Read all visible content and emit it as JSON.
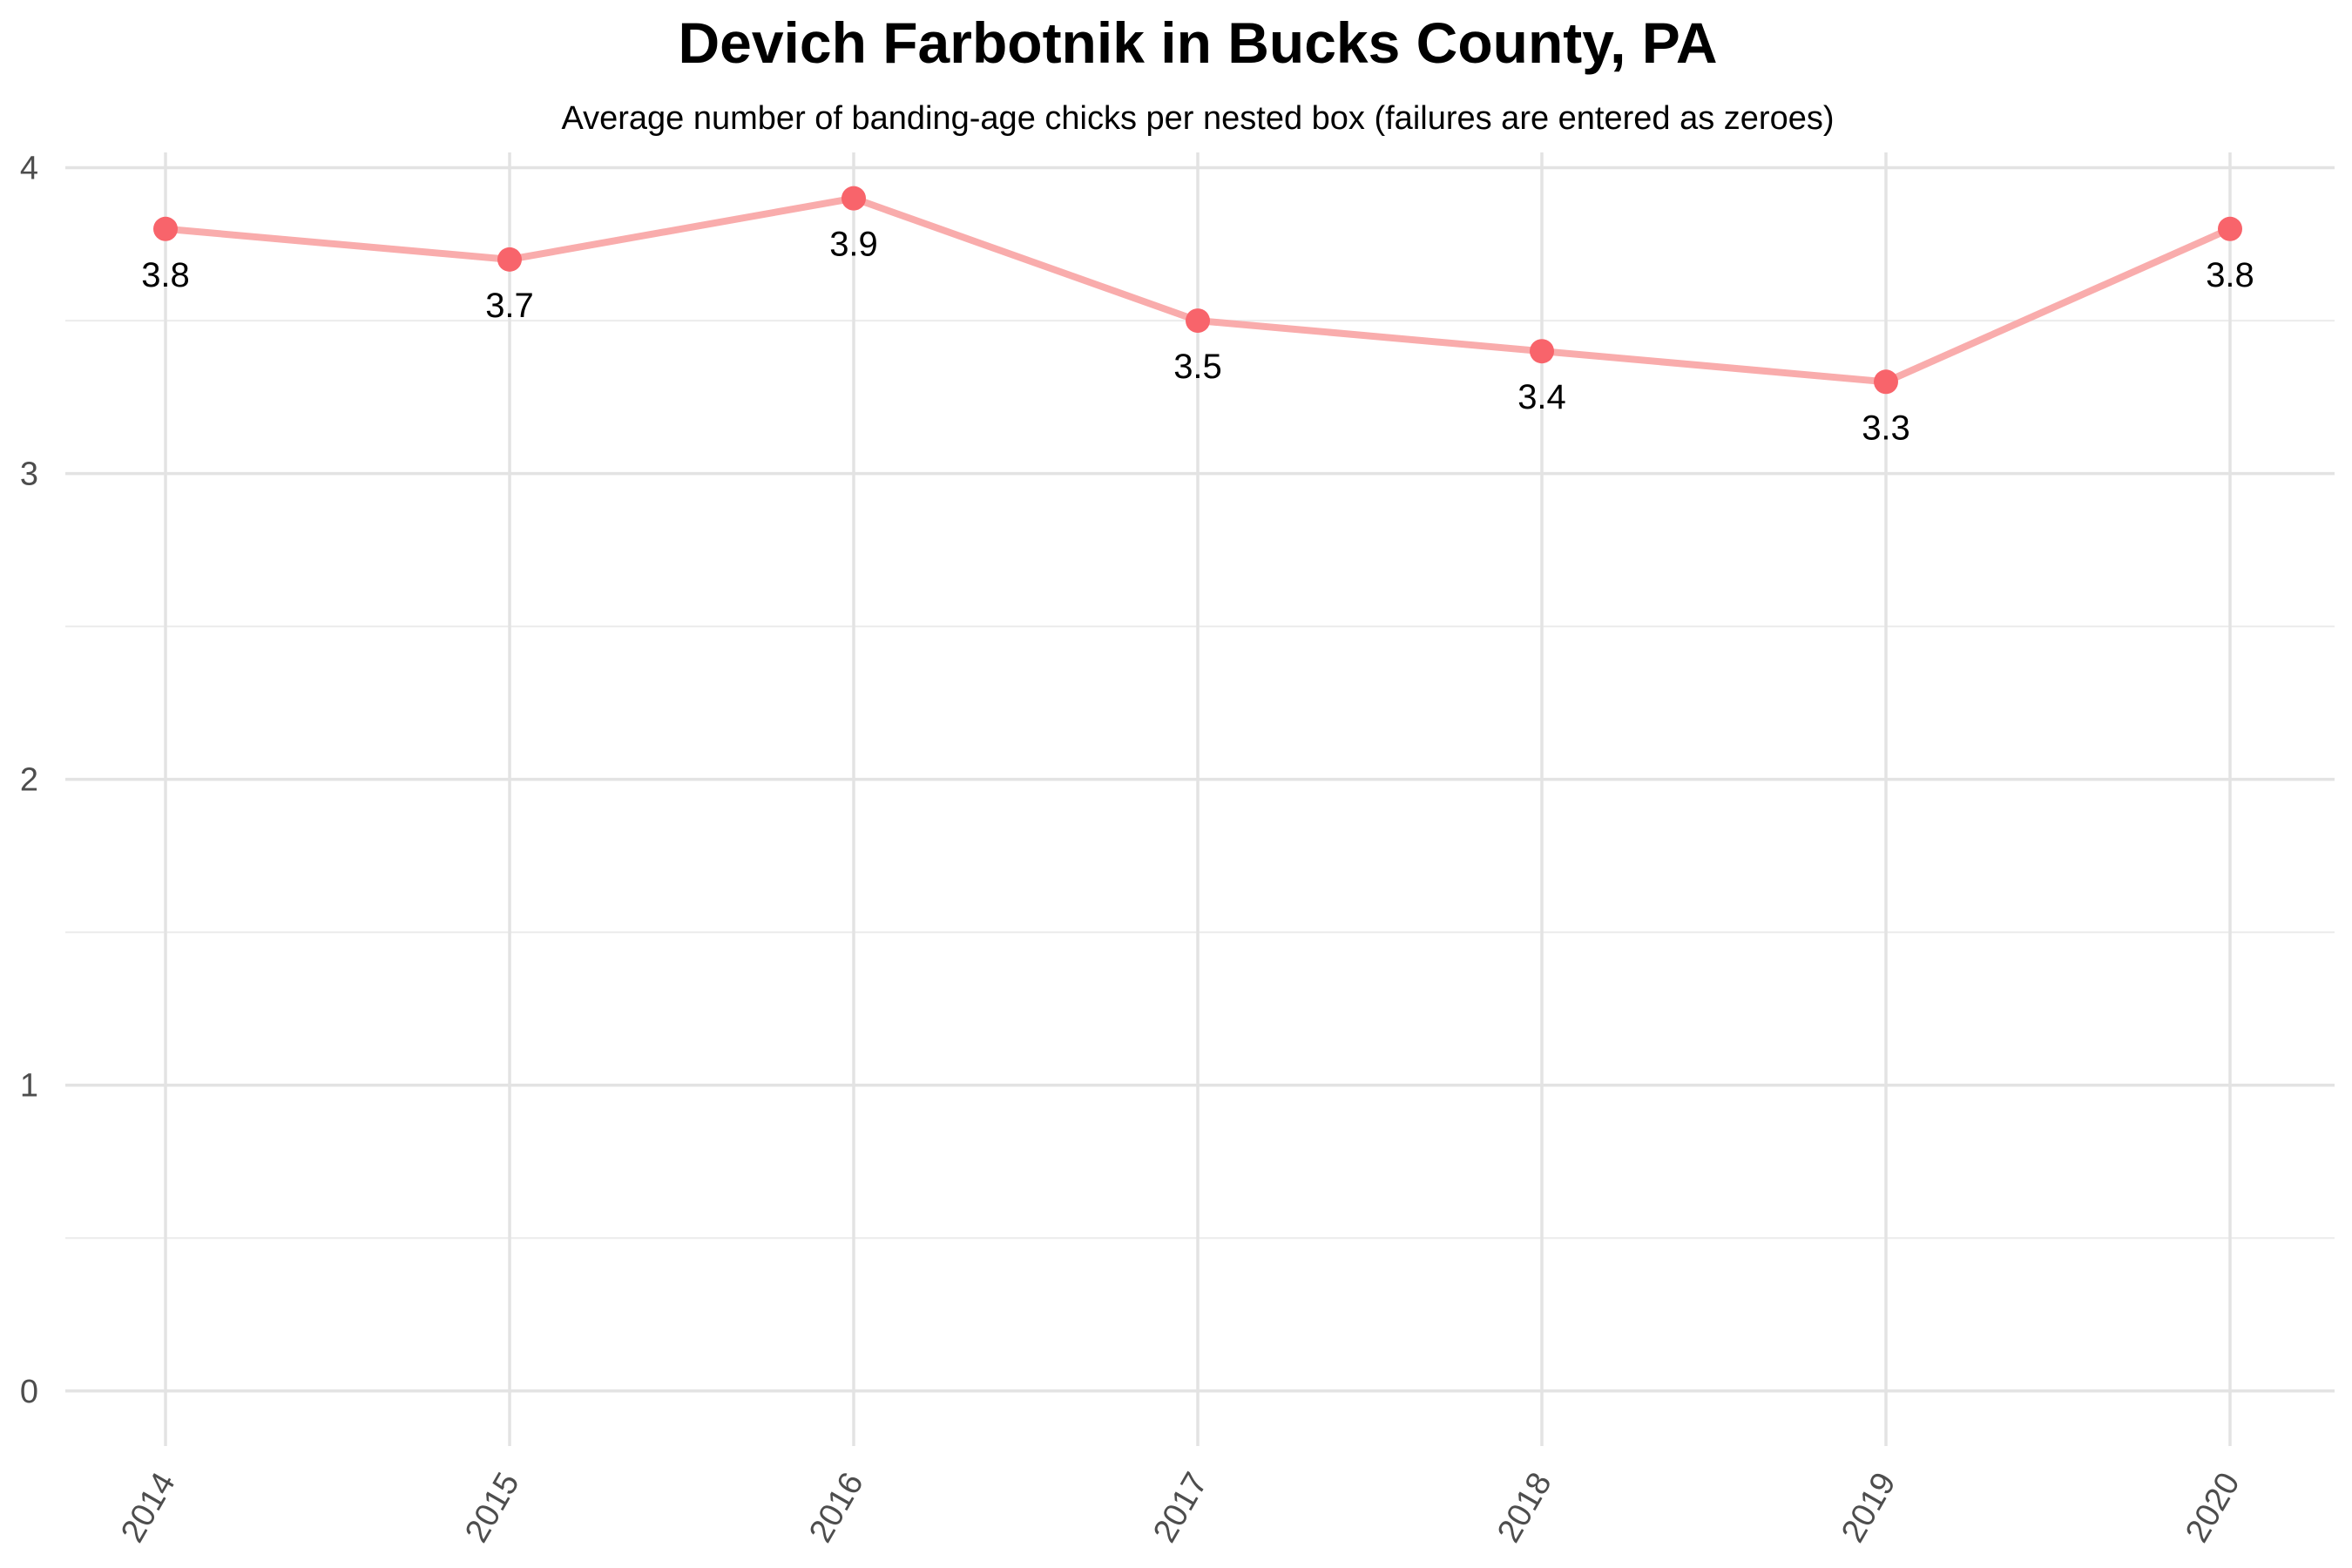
{
  "chart_data": {
    "type": "line",
    "title": "Devich Farbotnik in Bucks County, PA",
    "subtitle": "Average number of banding-age chicks per nested box (failures are entered as zeroes)",
    "xlabel": "",
    "ylabel": "",
    "categories": [
      "2014",
      "2015",
      "2016",
      "2017",
      "2018",
      "2019",
      "2020"
    ],
    "series": [
      {
        "values": [
          3.8,
          3.7,
          3.9,
          3.5,
          3.4,
          3.3,
          3.8
        ]
      }
    ],
    "data_labels": [
      "3.8",
      "3.7",
      "3.9",
      "3.5",
      "3.4",
      "3.3",
      "3.8"
    ],
    "ylim": [
      -0.18,
      4.05
    ],
    "yticks": [
      0,
      1,
      2,
      3,
      4
    ],
    "grid": true,
    "legend": "none",
    "colors": {
      "point": "#f8646b",
      "line": "#f9acac"
    }
  }
}
